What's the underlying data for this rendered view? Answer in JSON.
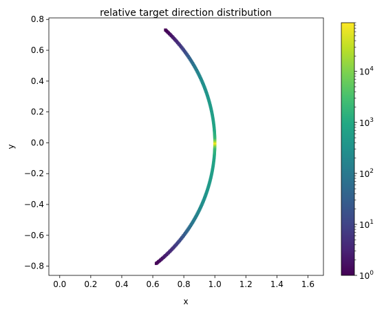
{
  "chart_data": {
    "type": "heatmap",
    "title": "relative target direction distribution",
    "xlabel": "x",
    "ylabel": "y",
    "xlim": [
      -0.07,
      1.7
    ],
    "ylim": [
      -0.86,
      0.81
    ],
    "x_ticks": [
      "0.0",
      "0.2",
      "0.4",
      "0.6",
      "0.8",
      "1.0",
      "1.2",
      "1.4",
      "1.6"
    ],
    "x_tick_values": [
      0.0,
      0.2,
      0.4,
      0.6,
      0.8,
      1.0,
      1.2,
      1.4,
      1.6
    ],
    "y_ticks": [
      "0.8",
      "0.6",
      "0.4",
      "0.2",
      "0.0",
      "−0.2",
      "−0.4",
      "−0.6",
      "−0.8"
    ],
    "y_tick_values": [
      0.8,
      0.6,
      0.4,
      0.2,
      0.0,
      -0.2,
      -0.4,
      -0.6,
      -0.8
    ],
    "description": "2D histogram of unit-vector target directions lying on an arc of the unit circle",
    "arc": {
      "radius": 1.0,
      "angle_min_deg": -51.5,
      "angle_max_deg": 47.0
    },
    "colorbar": {
      "scale": "log",
      "colormap": "viridis",
      "range": [
        1,
        90000
      ],
      "ticks": [
        {
          "value": 1,
          "base": "10",
          "exp": "0"
        },
        {
          "value": 10,
          "base": "10",
          "exp": "1"
        },
        {
          "value": 100,
          "base": "10",
          "exp": "2"
        },
        {
          "value": 1000,
          "base": "10",
          "exp": "3"
        },
        {
          "value": 10000,
          "base": "10",
          "exp": "4"
        }
      ]
    },
    "density_by_angle_deg": [
      {
        "angle": 47,
        "count": 1
      },
      {
        "angle": 44,
        "count": 2
      },
      {
        "angle": 40,
        "count": 5
      },
      {
        "angle": 36,
        "count": 15
      },
      {
        "angle": 32,
        "count": 60
      },
      {
        "angle": 28,
        "count": 150
      },
      {
        "angle": 24,
        "count": 250
      },
      {
        "angle": 20,
        "count": 350
      },
      {
        "angle": 16,
        "count": 450
      },
      {
        "angle": 12,
        "count": 550
      },
      {
        "angle": 8,
        "count": 700
      },
      {
        "angle": 5,
        "count": 900
      },
      {
        "angle": 2,
        "count": 2000
      },
      {
        "angle": 1,
        "count": 10000
      },
      {
        "angle": 0,
        "count": 80000
      },
      {
        "angle": -1,
        "count": 10000
      },
      {
        "angle": -2,
        "count": 2000
      },
      {
        "angle": -5,
        "count": 900
      },
      {
        "angle": -8,
        "count": 700
      },
      {
        "angle": -12,
        "count": 550
      },
      {
        "angle": -16,
        "count": 450
      },
      {
        "angle": -20,
        "count": 350
      },
      {
        "angle": -24,
        "count": 250
      },
      {
        "angle": -28,
        "count": 150
      },
      {
        "angle": -32,
        "count": 80
      },
      {
        "angle": -36,
        "count": 30
      },
      {
        "angle": -40,
        "count": 10
      },
      {
        "angle": -44,
        "count": 4
      },
      {
        "angle": -48,
        "count": 2
      },
      {
        "angle": -51.5,
        "count": 1
      }
    ]
  }
}
